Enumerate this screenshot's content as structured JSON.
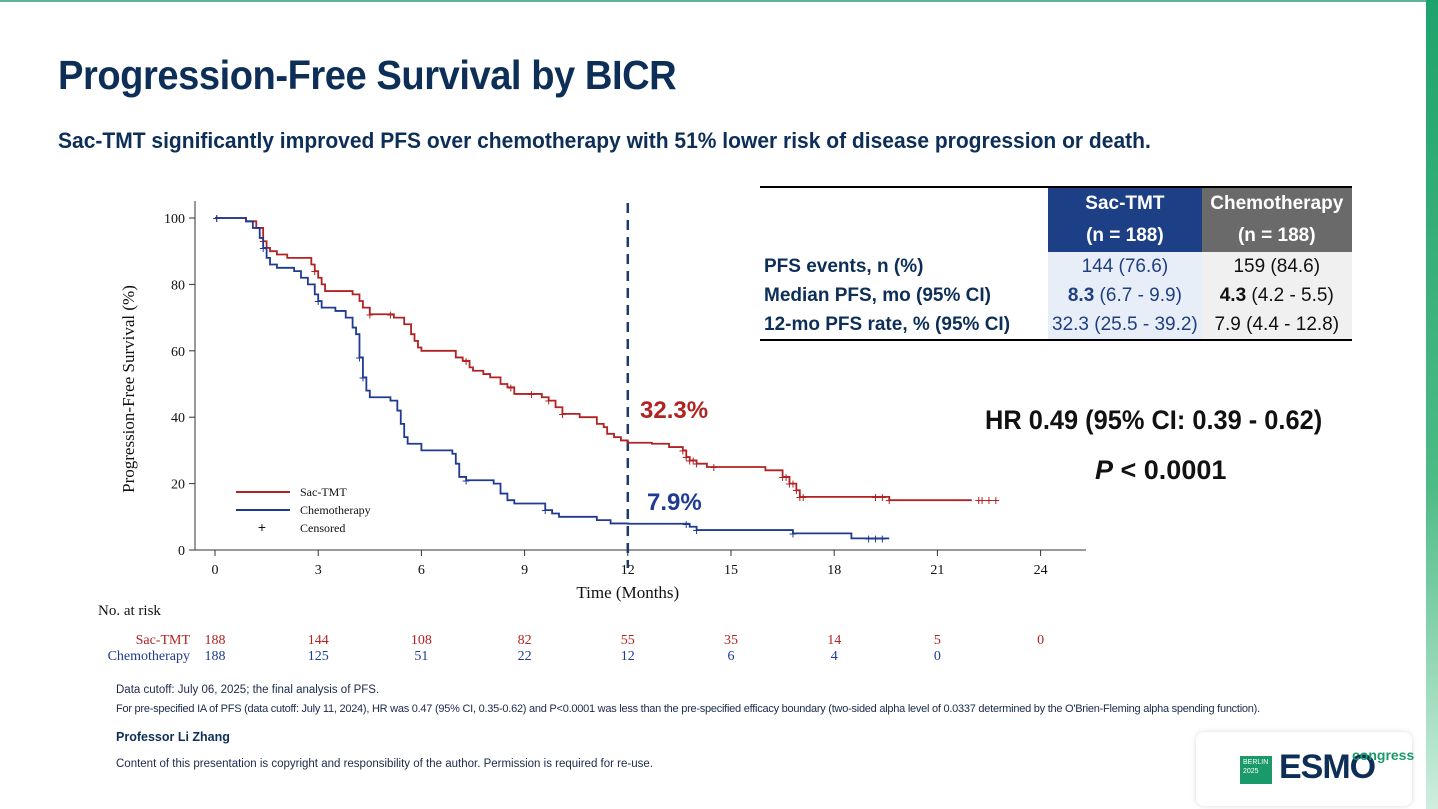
{
  "slide": {
    "title": "Progression-Free Survival by BICR",
    "subtitle": "Sac-TMT significantly improved PFS over chemotherapy with 51% lower risk of disease progression or death."
  },
  "chart_data": {
    "type": "line",
    "title": "",
    "xlabel": "Time (Months)",
    "ylabel": "Progression-Free Survival (%)",
    "xlim": [
      0,
      24
    ],
    "ylim": [
      0,
      100
    ],
    "xticks": [
      0,
      3,
      6,
      9,
      12,
      15,
      18,
      21,
      24
    ],
    "yticks": [
      0,
      20,
      40,
      60,
      80,
      100
    ],
    "legend_position": "bottom-left",
    "legend_censored_label": "Censored",
    "vertical_reference_line_x": 12,
    "series": [
      {
        "name": "Sac-TMT",
        "color": "#b22222",
        "annotation": "32.3%",
        "step_points": [
          [
            0,
            100
          ],
          [
            0.9,
            99
          ],
          [
            1.2,
            97
          ],
          [
            1.4,
            93
          ],
          [
            1.5,
            91
          ],
          [
            1.6,
            90
          ],
          [
            1.8,
            89
          ],
          [
            2.1,
            88
          ],
          [
            2.8,
            86
          ],
          [
            2.9,
            84
          ],
          [
            3.0,
            82
          ],
          [
            3.1,
            80
          ],
          [
            3.2,
            78
          ],
          [
            3.4,
            78
          ],
          [
            4.0,
            77
          ],
          [
            4.2,
            75
          ],
          [
            4.3,
            73
          ],
          [
            4.5,
            71
          ],
          [
            5.2,
            70
          ],
          [
            5.5,
            68
          ],
          [
            5.7,
            65
          ],
          [
            5.8,
            63
          ],
          [
            5.9,
            61
          ],
          [
            6.0,
            60
          ],
          [
            6.8,
            60
          ],
          [
            7.0,
            58
          ],
          [
            7.2,
            57
          ],
          [
            7.4,
            55
          ],
          [
            7.5,
            54
          ],
          [
            7.8,
            53
          ],
          [
            8.0,
            52
          ],
          [
            8.3,
            50
          ],
          [
            8.5,
            49
          ],
          [
            8.7,
            47
          ],
          [
            9.5,
            46
          ],
          [
            9.7,
            45
          ],
          [
            9.9,
            43
          ],
          [
            10.1,
            41
          ],
          [
            10.6,
            40
          ],
          [
            11.1,
            38
          ],
          [
            11.3,
            37
          ],
          [
            11.4,
            35
          ],
          [
            11.6,
            34
          ],
          [
            11.8,
            33
          ],
          [
            12.0,
            32.3
          ],
          [
            12.7,
            32
          ],
          [
            13.2,
            31
          ],
          [
            13.6,
            30
          ],
          [
            13.7,
            28
          ],
          [
            13.8,
            27
          ],
          [
            14.0,
            26
          ],
          [
            14.3,
            25
          ],
          [
            15.5,
            25
          ],
          [
            16.0,
            24
          ],
          [
            16.5,
            22
          ],
          [
            16.7,
            20
          ],
          [
            16.9,
            18
          ],
          [
            17.0,
            16
          ],
          [
            17.8,
            16
          ],
          [
            19.6,
            15
          ],
          [
            22.0,
            15
          ]
        ],
        "censor_x": [
          0.05,
          1.4,
          2.9,
          4.5,
          5.1,
          7.3,
          8.6,
          9.2,
          9.7,
          10.1,
          13.6,
          13.7,
          13.8,
          13.9,
          14.0,
          14.5,
          16.5,
          16.6,
          16.7,
          16.8,
          16.9,
          17.0,
          17.1,
          19.2,
          19.4,
          19.6,
          22.2,
          22.3,
          22.5,
          22.7
        ],
        "at_risk": [
          188,
          144,
          108,
          82,
          55,
          35,
          14,
          5,
          0
        ]
      },
      {
        "name": "Chemotherapy",
        "color": "#1f3a93",
        "annotation": "7.9%",
        "step_points": [
          [
            0,
            100
          ],
          [
            0.9,
            99
          ],
          [
            1.1,
            97
          ],
          [
            1.3,
            94
          ],
          [
            1.4,
            91
          ],
          [
            1.5,
            88
          ],
          [
            1.6,
            86
          ],
          [
            1.8,
            85
          ],
          [
            2.3,
            84
          ],
          [
            2.5,
            82
          ],
          [
            2.7,
            80
          ],
          [
            2.9,
            77
          ],
          [
            3.0,
            75
          ],
          [
            3.1,
            73
          ],
          [
            3.5,
            72
          ],
          [
            3.8,
            70
          ],
          [
            4.0,
            67
          ],
          [
            4.1,
            65
          ],
          [
            4.2,
            58
          ],
          [
            4.3,
            52
          ],
          [
            4.4,
            48
          ],
          [
            4.5,
            46
          ],
          [
            5.1,
            45
          ],
          [
            5.3,
            42
          ],
          [
            5.4,
            38
          ],
          [
            5.5,
            34
          ],
          [
            5.6,
            32
          ],
          [
            6.0,
            30
          ],
          [
            6.9,
            29
          ],
          [
            7.0,
            26
          ],
          [
            7.1,
            22
          ],
          [
            7.3,
            21
          ],
          [
            8.1,
            20
          ],
          [
            8.3,
            17
          ],
          [
            8.5,
            15
          ],
          [
            8.7,
            14
          ],
          [
            9.6,
            12
          ],
          [
            9.8,
            11
          ],
          [
            10.0,
            10
          ],
          [
            11.1,
            9
          ],
          [
            11.5,
            8
          ],
          [
            12.0,
            7.9
          ],
          [
            13.8,
            7
          ],
          [
            14.0,
            6
          ],
          [
            16.8,
            5
          ],
          [
            18.5,
            3.5
          ],
          [
            19.6,
            3.5
          ]
        ],
        "censor_x": [
          0.05,
          1.4,
          3.0,
          4.2,
          4.3,
          7.3,
          9.6,
          13.7,
          14.0,
          16.8,
          19.0,
          19.2,
          19.4
        ],
        "at_risk": [
          188,
          125,
          51,
          22,
          12,
          6,
          4,
          0
        ]
      }
    ]
  },
  "risk_table": {
    "title": "No. at risk",
    "rows": [
      {
        "label": "Sac-TMT",
        "color": "#b22222",
        "values": [
          "188",
          "144",
          "108",
          "82",
          "55",
          "35",
          "14",
          "5",
          "0"
        ]
      },
      {
        "label": "Chemotherapy",
        "color": "#1f3a93",
        "values": [
          "188",
          "125",
          "51",
          "22",
          "12",
          "6",
          "4",
          "0"
        ]
      }
    ]
  },
  "stats_table": {
    "sac_header": "Sac-TMT",
    "sac_n": "(n = 188)",
    "chemo_header": "Chemotherapy",
    "chemo_n": "(n = 188)",
    "rows": [
      {
        "label": "PFS events, n (%)",
        "sac_bold": "",
        "sac": "144 (76.6)",
        "chemo_bold": "",
        "chemo": "159 (84.6)"
      },
      {
        "label": "Median PFS, mo (95% CI)",
        "sac_bold": "8.3",
        "sac": " (6.7 - 9.9)",
        "chemo_bold": "4.3",
        "chemo": " (4.2 - 5.5)"
      },
      {
        "label": "12-mo PFS rate, % (95% CI)",
        "sac_bold": "",
        "sac": "32.3 (25.5 - 39.2)",
        "chemo_bold": "",
        "chemo": "7.9 (4.4 - 12.8)"
      }
    ]
  },
  "hazard": {
    "hr": "HR 0.49 (95% CI: 0.39 - 0.62)",
    "p_symbol": "P",
    "p_value": " < 0.0001"
  },
  "footnotes": {
    "line1": "Data cutoff: July 06, 2025; the final analysis of PFS.",
    "line2": "For pre-specified IA of PFS (data cutoff: July 11, 2024), HR was 0.47 (95% CI, 0.35-0.62) and P<0.0001 was less than the pre-specified efficacy boundary (two-sided alpha level of 0.0337 determined by the O'Brien-Fleming alpha spending function).",
    "presenter": "Professor Li Zhang",
    "copyright": "Content of this presentation is copyright and responsibility of the author. Permission is required for re-use."
  },
  "logo": {
    "city": "BERLIN",
    "year": "2025",
    "word": "ESMO",
    "suffix": "congress",
    "accent": "#1a9a6a"
  }
}
